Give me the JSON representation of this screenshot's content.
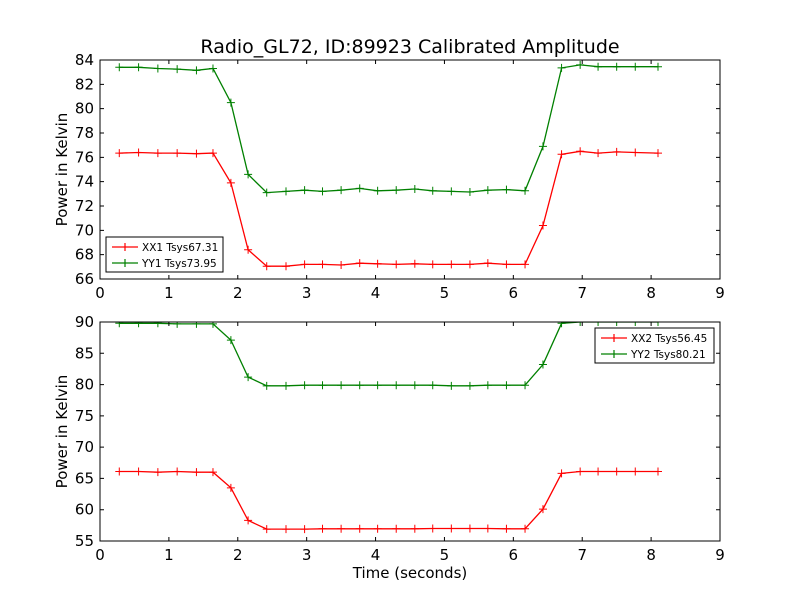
{
  "title": "Radio_GL72, ID:89923 Calibrated Amplitude",
  "chart_data": [
    {
      "type": "line",
      "ylabel": "Power in Kelvin",
      "xlabel": "",
      "xlim": [
        0,
        9
      ],
      "ylim": [
        66,
        84
      ],
      "xticks": [
        0,
        1,
        2,
        3,
        4,
        5,
        6,
        7,
        8,
        9
      ],
      "yticks": [
        66,
        68,
        70,
        72,
        74,
        76,
        78,
        80,
        82,
        84
      ],
      "legend_position": "lower-left",
      "grid": false,
      "x": [
        0.28,
        0.56,
        0.84,
        1.12,
        1.4,
        1.64,
        1.9,
        2.15,
        2.42,
        2.7,
        2.97,
        3.23,
        3.5,
        3.77,
        4.03,
        4.3,
        4.57,
        4.83,
        5.1,
        5.37,
        5.63,
        5.9,
        6.17,
        6.43,
        6.7,
        6.97,
        7.23,
        7.5,
        7.77,
        8.1
      ],
      "series": [
        {
          "name": "XX1 Tsys67.31",
          "color": "#ff0000",
          "values": [
            76.35,
            76.4,
            76.35,
            76.35,
            76.3,
            76.35,
            73.9,
            68.4,
            67.05,
            67.05,
            67.2,
            67.2,
            67.15,
            67.3,
            67.25,
            67.2,
            67.25,
            67.2,
            67.2,
            67.2,
            67.3,
            67.2,
            67.2,
            70.4,
            76.25,
            76.5,
            76.35,
            76.45,
            76.4,
            76.35
          ]
        },
        {
          "name": "YY1 Tsys73.95",
          "color": "#008000",
          "values": [
            83.4,
            83.4,
            83.3,
            83.25,
            83.15,
            83.3,
            80.5,
            74.6,
            73.1,
            73.2,
            73.3,
            73.2,
            73.3,
            73.45,
            73.25,
            73.3,
            73.4,
            73.25,
            73.2,
            73.15,
            73.3,
            73.35,
            73.25,
            76.9,
            83.35,
            83.6,
            83.45,
            83.45,
            83.45,
            83.45
          ]
        }
      ]
    },
    {
      "type": "line",
      "ylabel": "Power in Kelvin",
      "xlabel": "Time (seconds)",
      "xlim": [
        0,
        9
      ],
      "ylim": [
        55,
        90
      ],
      "xticks": [
        0,
        1,
        2,
        3,
        4,
        5,
        6,
        7,
        8,
        9
      ],
      "yticks": [
        55,
        60,
        65,
        70,
        75,
        80,
        85,
        90
      ],
      "legend_position": "upper-right",
      "grid": false,
      "x": [
        0.28,
        0.56,
        0.84,
        1.12,
        1.4,
        1.64,
        1.9,
        2.15,
        2.42,
        2.7,
        2.97,
        3.23,
        3.5,
        3.77,
        4.03,
        4.3,
        4.57,
        4.83,
        5.1,
        5.37,
        5.63,
        5.9,
        6.17,
        6.43,
        6.7,
        6.97,
        7.23,
        7.5,
        7.77,
        8.1
      ],
      "series": [
        {
          "name": "XX2 Tsys56.45",
          "color": "#ff0000",
          "values": [
            66.1,
            66.1,
            66.0,
            66.1,
            66.0,
            66.0,
            63.5,
            58.3,
            56.9,
            56.9,
            56.9,
            56.95,
            56.95,
            56.95,
            56.95,
            56.95,
            56.95,
            57.0,
            57.0,
            57.0,
            57.0,
            56.95,
            56.95,
            60.1,
            65.8,
            66.1,
            66.1,
            66.1,
            66.1,
            66.1
          ]
        },
        {
          "name": "YY2 Tsys80.21",
          "color": "#008000",
          "values": [
            89.8,
            89.8,
            89.8,
            89.7,
            89.7,
            89.7,
            87.1,
            81.2,
            79.8,
            79.8,
            79.9,
            79.9,
            79.9,
            79.9,
            79.9,
            79.9,
            79.9,
            79.9,
            79.8,
            79.8,
            79.9,
            79.9,
            79.9,
            83.2,
            89.8,
            90.0,
            90.0,
            90.0,
            90.0,
            90.0
          ]
        }
      ]
    }
  ]
}
